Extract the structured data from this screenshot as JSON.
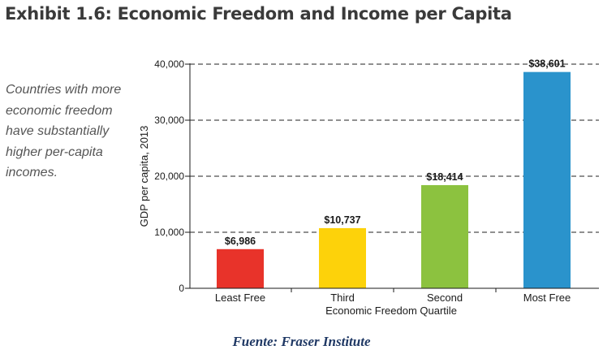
{
  "title": "Exhibit 1.6: Economic Freedom and Income per Capita",
  "side_note": "Countries with more economic freedom have substantially higher per-capita incomes.",
  "source": "Fuente: Fraser Institute",
  "chart_data": {
    "type": "bar",
    "categories": [
      "Least Free",
      "Third",
      "Second",
      "Most Free"
    ],
    "values": [
      6986,
      10737,
      18414,
      38601
    ],
    "value_labels": [
      "$6,986",
      "$10,737",
      "$18,414",
      "$38,601"
    ],
    "colors": [
      "#e8332a",
      "#fdd20a",
      "#8cc23f",
      "#2a93cc"
    ],
    "xlabel": "Economic Freedom Quartile",
    "ylabel": "GDP per capita, 2013",
    "ylim": [
      0,
      40000
    ],
    "yticks": [
      0,
      10000,
      20000,
      30000,
      40000
    ],
    "ytick_labels": [
      "0",
      "10,000",
      "20,000",
      "30,000",
      "40,000"
    ],
    "grid": "dashed horizontal"
  }
}
